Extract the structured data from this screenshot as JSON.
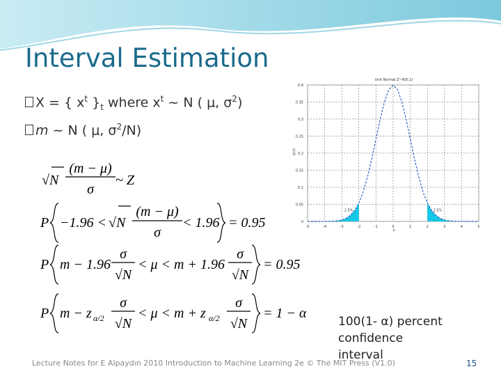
{
  "title": "Interval Estimation",
  "bullets": [
    [
      "X = { x",
      "t",
      " }",
      "t",
      " where x",
      "t",
      " ~ N ( μ, σ",
      "2",
      ")"
    ],
    [
      "m",
      " ~ N ( μ, σ",
      "2",
      "/N)"
    ]
  ],
  "equations": [
    {
      "root": "√N",
      "numerator": "(m − μ)",
      "denominator": "σ",
      "rest": "~ Z"
    },
    {
      "p": "P",
      "left": "−1.96 <",
      "root": "√N",
      "numerator": "(m − μ)",
      "denominator": "σ",
      "right": "< 1.96",
      "result": "= 0.95"
    },
    {
      "p": "P",
      "left": "m − 1.96",
      "numerator1": "σ",
      "denominator1": "√N",
      "middle": "< μ < m + 1.96",
      "numerator2": "σ",
      "denominator2": "√N",
      "result": "= 0.95"
    },
    {
      "p": "P",
      "left": "m − z",
      "sub1": "α/2",
      "numerator1": "σ",
      "denominator1": "√N",
      "middle": "< μ < m + z",
      "sub2": "α/2",
      "numerator2": "σ",
      "denominator2": "√N",
      "result": "= 1 − α"
    }
  ],
  "note": [
    "100(1- α) percent",
    "confidence",
    "interval"
  ],
  "footer": "Lecture Notes for E Alpaydın 2010 Introduction to Machine Learning 2e © The MIT Press (V1.0)",
  "page_number": "15",
  "chart_data": {
    "type": "line",
    "title": "Unit Normal Z~N(0,1)",
    "x_label": "x",
    "y_label": "p(x)",
    "x": [
      -5,
      -4,
      -3.75,
      -3.5,
      -3.25,
      -3,
      -2.75,
      -2.5,
      -2.25,
      -2,
      -1.75,
      -1.5,
      -1.25,
      -1,
      -0.75,
      -0.5,
      -0.25,
      0,
      0.25,
      0.5,
      0.75,
      1,
      1.25,
      1.5,
      1.75,
      2,
      2.25,
      2.5,
      2.75,
      3,
      3.25,
      3.5,
      3.75,
      4,
      5
    ],
    "series": [
      {
        "color": "#2f5fc4",
        "values": [
          0,
          0.0001,
          0.0004,
          0.001,
          0.002,
          0.004,
          0.009,
          0.018,
          0.032,
          0.054,
          0.086,
          0.13,
          0.183,
          0.242,
          0.301,
          0.352,
          0.387,
          0.399,
          0.387,
          0.352,
          0.301,
          0.242,
          0.183,
          0.13,
          0.086,
          0.054,
          0.032,
          0.018,
          0.009,
          0.004,
          0.002,
          0.001,
          0.0004,
          0.0001,
          0
        ]
      }
    ],
    "tail_color": "#14c8e6",
    "annotations": [
      {
        "x": -2.6,
        "y": 0.03,
        "text": "2.5%"
      },
      {
        "x": 2.6,
        "y": 0.03,
        "text": "2.5%"
      }
    ],
    "xlim": [
      -5,
      5
    ],
    "ylim": [
      0,
      0.4
    ],
    "xticks": [
      -5,
      -4,
      -3,
      -2,
      -1,
      0,
      1,
      2,
      3,
      4,
      5
    ],
    "yticks": [
      0,
      0.05,
      0.1,
      0.15,
      0.2,
      0.25,
      0.3,
      0.35,
      0.4
    ],
    "grid": true
  }
}
